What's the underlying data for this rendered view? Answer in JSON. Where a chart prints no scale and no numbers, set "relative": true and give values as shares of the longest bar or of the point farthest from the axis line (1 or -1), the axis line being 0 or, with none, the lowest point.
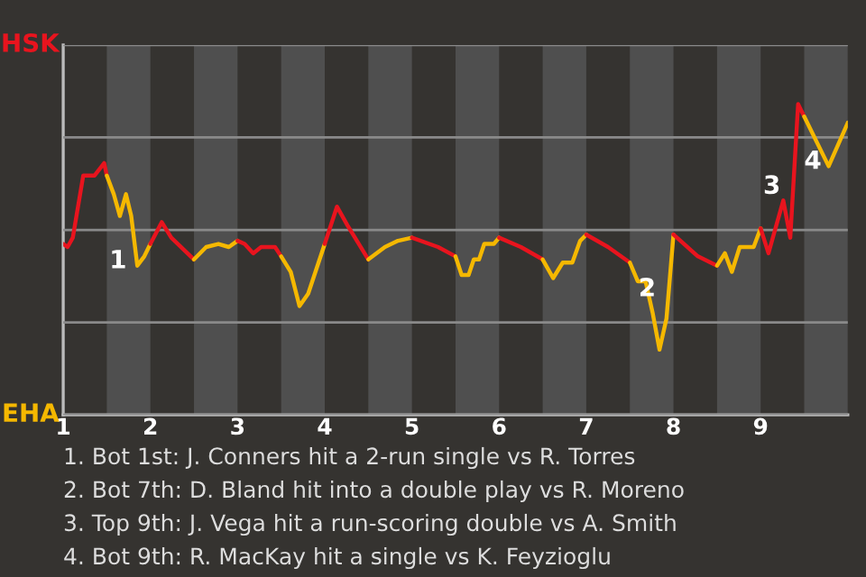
{
  "chart_data": {
    "type": "line",
    "relative": true,
    "xlim": [
      1,
      10
    ],
    "xticks": [
      1,
      2,
      3,
      4,
      5,
      6,
      7,
      8,
      9
    ],
    "grid": "y",
    "series": [
      {
        "name": "HSK",
        "color": "#e8141e",
        "x": [
          1,
          1.05,
          1.11,
          1.23,
          1.36,
          1.47,
          1.5
        ],
        "values": [
          0.55,
          0.54,
          0.57,
          0.77,
          0.77,
          0.81,
          0.77
        ]
      },
      {
        "name": "EHA",
        "color": "#f5b800",
        "x": [
          1.5,
          1.58,
          1.65,
          1.72,
          1.78,
          1.85,
          1.93,
          2
        ],
        "values": [
          0.77,
          0.71,
          0.64,
          0.71,
          0.64,
          0.48,
          0.51,
          0.55
        ]
      },
      {
        "color": "#e8141e",
        "x": [
          2,
          2.13,
          2.24,
          2.5
        ],
        "values": [
          0.55,
          0.62,
          0.57,
          0.5
        ]
      },
      {
        "color": "#f5b800",
        "x": [
          2.5,
          2.64,
          2.78,
          2.9,
          3
        ],
        "values": [
          0.5,
          0.54,
          0.55,
          0.54,
          0.56
        ]
      },
      {
        "color": "#e8141e",
        "x": [
          3,
          3.08,
          3.18,
          3.27,
          3.43,
          3.5
        ],
        "values": [
          0.56,
          0.55,
          0.52,
          0.54,
          0.54,
          0.51
        ]
      },
      {
        "color": "#f5b800",
        "x": [
          3.5,
          3.61,
          3.71,
          3.81,
          4
        ],
        "values": [
          0.51,
          0.46,
          0.35,
          0.39,
          0.55
        ]
      },
      {
        "color": "#e8141e",
        "x": [
          4,
          4.14,
          4.26,
          4.5
        ],
        "values": [
          0.55,
          0.67,
          0.61,
          0.5
        ]
      },
      {
        "color": "#f5b800",
        "x": [
          4.5,
          4.69,
          4.84,
          5
        ],
        "values": [
          0.5,
          0.54,
          0.56,
          0.57
        ]
      },
      {
        "color": "#e8141e",
        "x": [
          5,
          5.3,
          5.5
        ],
        "values": [
          0.57,
          0.54,
          0.51
        ]
      },
      {
        "color": "#f5b800",
        "x": [
          5.5,
          5.57,
          5.65,
          5.71,
          5.77,
          5.83,
          5.94,
          6
        ],
        "values": [
          0.51,
          0.45,
          0.45,
          0.5,
          0.5,
          0.55,
          0.55,
          0.57
        ]
      },
      {
        "color": "#e8141e",
        "x": [
          6,
          6.25,
          6.5
        ],
        "values": [
          0.57,
          0.54,
          0.5
        ]
      },
      {
        "color": "#f5b800",
        "x": [
          6.5,
          6.62,
          6.73,
          6.84,
          6.93,
          7
        ],
        "values": [
          0.5,
          0.44,
          0.49,
          0.49,
          0.56,
          0.58
        ]
      },
      {
        "color": "#e8141e",
        "x": [
          7,
          7.25,
          7.5
        ],
        "values": [
          0.58,
          0.54,
          0.49
        ]
      },
      {
        "color": "#f5b800",
        "x": [
          7.5,
          7.59,
          7.68,
          7.76,
          7.84,
          7.92,
          8
        ],
        "values": [
          0.49,
          0.43,
          0.43,
          0.33,
          0.21,
          0.31,
          0.58
        ]
      },
      {
        "color": "#e8141e",
        "x": [
          8,
          8.28,
          8.5
        ],
        "values": [
          0.58,
          0.51,
          0.48
        ]
      },
      {
        "color": "#f5b800",
        "x": [
          8.5,
          8.59,
          8.67,
          8.76,
          8.92,
          9
        ],
        "values": [
          0.48,
          0.52,
          0.46,
          0.54,
          0.54,
          0.6
        ]
      },
      {
        "color": "#e8141e",
        "x": [
          9,
          9.09,
          9.26,
          9.34,
          9.43,
          9.5
        ],
        "values": [
          0.6,
          0.52,
          0.69,
          0.57,
          1,
          0.96
        ]
      },
      {
        "color": "#f5b800",
        "x": [
          9.5,
          9.78,
          10
        ],
        "values": [
          0.96,
          0.8,
          0.94
        ]
      }
    ],
    "bands": [
      {
        "axis": "x",
        "from": 1.5,
        "to": 2,
        "color": "#4f4f4f"
      },
      {
        "axis": "x",
        "from": 2.5,
        "to": 3,
        "color": "#4f4f4f"
      },
      {
        "axis": "x",
        "from": 3.5,
        "to": 4,
        "color": "#4f4f4f"
      },
      {
        "axis": "x",
        "from": 4.5,
        "to": 5,
        "color": "#4f4f4f"
      },
      {
        "axis": "x",
        "from": 5.5,
        "to": 6,
        "color": "#4f4f4f"
      },
      {
        "axis": "x",
        "from": 6.5,
        "to": 7,
        "color": "#4f4f4f"
      },
      {
        "axis": "x",
        "from": 7.5,
        "to": 8,
        "color": "#4f4f4f"
      },
      {
        "axis": "x",
        "from": 8.5,
        "to": 9,
        "color": "#4f4f4f"
      },
      {
        "axis": "x",
        "from": 9.5,
        "to": 10,
        "color": "#4f4f4f"
      }
    ],
    "annotations": [
      {
        "text": "1",
        "x": 1.93,
        "y": 0.51
      },
      {
        "text": "2",
        "x": 8,
        "y": 0.42
      },
      {
        "text": "3",
        "x": 9.43,
        "y": 0.75
      },
      {
        "text": "4",
        "x": 9.9,
        "y": 0.83
      },
      "1. Bot 1st: J. Conners hit a 2-run single vs R. Torres",
      "2. Bot 7th: D. Bland hit into a double play vs R. Moreno",
      "3. Top 9th: J. Vega hit a run-scoring double vs A. Smith",
      "4. Bot 9th: R. MacKay hit a single vs K. Feyzioglu"
    ]
  }
}
